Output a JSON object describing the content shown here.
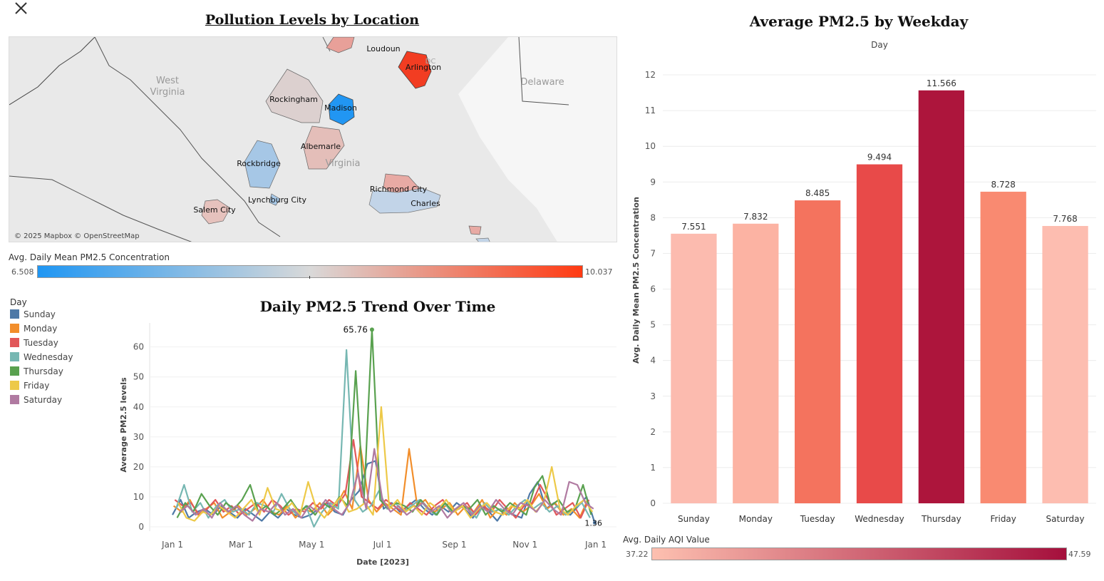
{
  "map": {
    "title": "Pollution Levels by Location",
    "attribution": "© 2025 Mapbox © OpenStreetMap",
    "state_labels": [
      "West",
      "Virginia",
      "Virginia",
      "Delaware",
      "DC"
    ],
    "locations": [
      {
        "name": "Loudoun",
        "value": null,
        "color": "#e8a099"
      },
      {
        "name": "Arlington",
        "value": 10.037,
        "color": "#f23d22"
      },
      {
        "name": "Rockingham",
        "value": null,
        "color": "#dcd0cf"
      },
      {
        "name": "Madison",
        "value": 6.508,
        "color": "#2196f3"
      },
      {
        "name": "Albemarle",
        "value": null,
        "color": "#e4beb9"
      },
      {
        "name": "Rockbridge",
        "value": null,
        "color": "#a6c7e6"
      },
      {
        "name": "Lynchburg City",
        "value": null,
        "color": "#a8c9e8"
      },
      {
        "name": "Salem City",
        "value": null,
        "color": "#e6c2bd"
      },
      {
        "name": "Richmond City",
        "value": null,
        "color": "#e8aaa4"
      },
      {
        "name": "Charles",
        "value": null,
        "color": "#c2d4e8"
      }
    ],
    "color_legend": {
      "title": "Avg. Daily Mean PM2.5 Concentration",
      "min": "6.508",
      "max": "10.037",
      "min_color": "#1f96f3",
      "mid_color": "#d9d9d9",
      "max_color": "#ff3a12"
    }
  },
  "line_chart": {
    "title": "Daily PM2.5 Trend Over Time",
    "legend_title": "Day",
    "ylabel": "Average PM2.5 levels",
    "xlabel": "Date [2023]",
    "peak_label": "65.76",
    "end_label": "1.36"
  },
  "bar_chart": {
    "title": "Average PM2.5 by Weekday",
    "top_label": "Day",
    "ylabel": "Avg. Daily Mean PM2.5 Concentration",
    "color_legend": {
      "title": "Avg. Daily AQI Value",
      "min": "37.22",
      "max": "47.59",
      "min_color": "#fdc0b0",
      "max_color": "#a50f3c"
    }
  },
  "chart_data": [
    {
      "type": "bar",
      "title": "Average PM2.5 by Weekday",
      "categories": [
        "Sunday",
        "Monday",
        "Tuesday",
        "Wednesday",
        "Thursday",
        "Friday",
        "Saturday"
      ],
      "values": [
        7.551,
        7.832,
        8.485,
        9.494,
        11.566,
        8.728,
        7.768
      ],
      "value_labels": [
        "7.551",
        "7.832",
        "8.485",
        "9.494",
        "11.566",
        "8.728",
        "7.768"
      ],
      "colors": [
        "#fcbbaf",
        "#fcb3a3",
        "#f4735e",
        "#e84a49",
        "#ad153c",
        "#f98a71",
        "#fdbdb0"
      ],
      "ylim": [
        0,
        12.5
      ],
      "yticks": [
        0,
        1,
        2,
        3,
        4,
        5,
        6,
        7,
        8,
        9,
        10,
        11,
        12
      ],
      "xlabel": "Day",
      "ylabel": "Avg. Daily Mean PM2.5 Concentration",
      "grid": true
    },
    {
      "type": "line",
      "title": "Daily PM2.5 Trend Over Time",
      "xlabel": "Date [2023]",
      "ylabel": "Average PM2.5 levels",
      "xlim": [
        "2023-01-01",
        "2024-01-01"
      ],
      "xticks": [
        "Jan 1",
        "Mar 1",
        "May 1",
        "Jul 1",
        "Sep 1",
        "Nov 1",
        "Jan 1"
      ],
      "ylim": [
        0,
        68
      ],
      "yticks": [
        0,
        10,
        20,
        30,
        40,
        50,
        60
      ],
      "grid": true,
      "legend_position": "left",
      "series": [
        {
          "name": "Sunday",
          "color": "#4e79a7",
          "x": [
            "2023-01-01",
            "2023-01-08",
            "2023-01-15",
            "2023-01-22",
            "2023-01-29",
            "2023-02-05",
            "2023-02-12",
            "2023-02-19",
            "2023-02-26",
            "2023-03-05",
            "2023-03-12",
            "2023-03-19",
            "2023-03-26",
            "2023-04-02",
            "2023-04-09",
            "2023-04-16",
            "2023-04-23",
            "2023-04-30",
            "2023-05-07",
            "2023-05-14",
            "2023-05-21",
            "2023-05-28",
            "2023-06-04",
            "2023-06-11",
            "2023-06-18",
            "2023-06-25",
            "2023-07-02",
            "2023-07-09",
            "2023-07-16",
            "2023-07-23",
            "2023-07-30",
            "2023-08-06",
            "2023-08-13",
            "2023-08-20",
            "2023-08-27",
            "2023-09-03",
            "2023-09-10",
            "2023-09-17",
            "2023-09-24",
            "2023-10-01",
            "2023-10-08",
            "2023-10-15",
            "2023-10-22",
            "2023-10-29",
            "2023-11-05",
            "2023-11-12",
            "2023-11-19",
            "2023-11-26",
            "2023-12-03",
            "2023-12-10",
            "2023-12-17",
            "2023-12-24",
            "2023-12-31"
          ],
          "values": [
            4,
            9,
            3,
            5,
            6,
            4,
            7,
            5,
            3,
            6,
            4,
            2,
            5,
            3,
            6,
            4,
            3,
            4,
            6,
            8,
            5,
            4,
            9,
            12,
            21,
            22,
            6,
            8,
            5,
            7,
            9,
            6,
            4,
            7,
            5,
            8,
            6,
            3,
            7,
            5,
            2,
            6,
            4,
            3,
            11,
            15,
            6,
            8,
            5,
            4,
            7,
            10,
            1.36
          ]
        },
        {
          "name": "Monday",
          "color": "#f28e2b",
          "x": [
            "2023-01-02",
            "2023-01-09",
            "2023-01-16",
            "2023-01-23",
            "2023-01-30",
            "2023-02-06",
            "2023-02-13",
            "2023-02-20",
            "2023-02-27",
            "2023-03-06",
            "2023-03-13",
            "2023-03-20",
            "2023-03-27",
            "2023-04-03",
            "2023-04-10",
            "2023-04-17",
            "2023-04-24",
            "2023-05-01",
            "2023-05-08",
            "2023-05-15",
            "2023-05-22",
            "2023-05-29",
            "2023-06-05",
            "2023-06-12",
            "2023-06-19",
            "2023-06-26",
            "2023-07-03",
            "2023-07-10",
            "2023-07-17",
            "2023-07-24",
            "2023-07-31",
            "2023-08-07",
            "2023-08-14",
            "2023-08-21",
            "2023-08-28",
            "2023-09-04",
            "2023-09-11",
            "2023-09-18",
            "2023-09-25",
            "2023-10-02",
            "2023-10-09",
            "2023-10-16",
            "2023-10-23",
            "2023-10-30",
            "2023-11-06",
            "2023-11-13",
            "2023-11-20",
            "2023-11-27",
            "2023-12-04",
            "2023-12-11",
            "2023-12-18",
            "2023-12-25"
          ],
          "values": [
            7,
            5,
            9,
            4,
            6,
            8,
            3,
            5,
            7,
            4,
            6,
            9,
            5,
            4,
            7,
            3,
            6,
            5,
            8,
            4,
            7,
            12,
            6,
            27,
            9,
            5,
            8,
            6,
            4,
            26,
            7,
            9,
            5,
            6,
            8,
            4,
            7,
            5,
            9,
            3,
            6,
            4,
            8,
            5,
            7,
            11,
            6,
            8,
            4,
            6,
            3,
            9
          ]
        },
        {
          "name": "Tuesday",
          "color": "#e15759",
          "x": [
            "2023-01-03",
            "2023-01-10",
            "2023-01-17",
            "2023-01-24",
            "2023-01-31",
            "2023-02-07",
            "2023-02-14",
            "2023-02-21",
            "2023-02-28",
            "2023-03-07",
            "2023-03-14",
            "2023-03-21",
            "2023-03-28",
            "2023-04-04",
            "2023-04-11",
            "2023-04-18",
            "2023-04-25",
            "2023-05-02",
            "2023-05-09",
            "2023-05-16",
            "2023-05-23",
            "2023-05-30",
            "2023-06-06",
            "2023-06-13",
            "2023-06-20",
            "2023-06-27",
            "2023-07-04",
            "2023-07-11",
            "2023-07-18",
            "2023-07-25",
            "2023-08-01",
            "2023-08-08",
            "2023-08-15",
            "2023-08-22",
            "2023-08-29",
            "2023-09-05",
            "2023-09-12",
            "2023-09-19",
            "2023-09-26",
            "2023-10-03",
            "2023-10-10",
            "2023-10-17",
            "2023-10-24",
            "2023-10-31",
            "2023-11-07",
            "2023-11-14",
            "2023-11-21",
            "2023-11-28",
            "2023-12-05",
            "2023-12-12",
            "2023-12-19",
            "2023-12-26"
          ],
          "values": [
            9,
            7,
            8,
            4,
            6,
            9,
            5,
            7,
            4,
            6,
            8,
            5,
            9,
            7,
            4,
            6,
            5,
            8,
            6,
            9,
            7,
            11,
            29,
            10,
            8,
            6,
            9,
            7,
            5,
            8,
            6,
            4,
            7,
            9,
            5,
            6,
            8,
            4,
            7,
            5,
            9,
            6,
            3,
            7,
            8,
            14,
            9,
            4,
            6,
            8,
            3,
            9
          ]
        },
        {
          "name": "Wednesday",
          "color": "#76b7b2",
          "x": [
            "2023-01-04",
            "2023-01-11",
            "2023-01-18",
            "2023-01-25",
            "2023-02-01",
            "2023-02-08",
            "2023-02-15",
            "2023-02-22",
            "2023-03-01",
            "2023-03-08",
            "2023-03-15",
            "2023-03-22",
            "2023-03-29",
            "2023-04-05",
            "2023-04-12",
            "2023-04-19",
            "2023-04-26",
            "2023-05-03",
            "2023-05-10",
            "2023-05-17",
            "2023-05-24",
            "2023-05-31",
            "2023-06-07",
            "2023-06-14",
            "2023-06-21",
            "2023-06-28",
            "2023-07-05",
            "2023-07-12",
            "2023-07-19",
            "2023-07-26",
            "2023-08-02",
            "2023-08-09",
            "2023-08-16",
            "2023-08-23",
            "2023-08-30",
            "2023-09-06",
            "2023-09-13",
            "2023-09-20",
            "2023-09-27",
            "2023-10-04",
            "2023-10-11",
            "2023-10-18",
            "2023-10-25",
            "2023-11-01",
            "2023-11-08",
            "2023-11-15",
            "2023-11-22",
            "2023-11-29",
            "2023-12-06",
            "2023-12-13",
            "2023-12-20",
            "2023-12-27"
          ],
          "values": [
            6,
            14,
            5,
            8,
            3,
            7,
            9,
            5,
            6,
            4,
            8,
            7,
            5,
            11,
            6,
            4,
            7,
            0,
            5,
            8,
            6,
            59,
            9,
            5,
            7,
            12,
            6,
            8,
            5,
            7,
            9,
            6,
            4,
            8,
            5,
            7,
            6,
            3,
            8,
            5,
            6,
            4,
            7,
            9,
            6,
            8,
            5,
            7,
            4,
            6,
            8,
            3
          ]
        },
        {
          "name": "Thursday",
          "color": "#59a14f",
          "x": [
            "2023-01-05",
            "2023-01-12",
            "2023-01-19",
            "2023-01-26",
            "2023-02-02",
            "2023-02-09",
            "2023-02-16",
            "2023-02-23",
            "2023-03-02",
            "2023-03-09",
            "2023-03-16",
            "2023-03-23",
            "2023-03-30",
            "2023-04-06",
            "2023-04-13",
            "2023-04-20",
            "2023-04-27",
            "2023-05-04",
            "2023-05-11",
            "2023-05-18",
            "2023-05-25",
            "2023-06-01",
            "2023-06-08",
            "2023-06-15",
            "2023-06-22",
            "2023-06-29",
            "2023-07-06",
            "2023-07-13",
            "2023-07-20",
            "2023-07-27",
            "2023-08-03",
            "2023-08-10",
            "2023-08-17",
            "2023-08-24",
            "2023-08-31",
            "2023-09-07",
            "2023-09-14",
            "2023-09-21",
            "2023-09-28",
            "2023-10-05",
            "2023-10-12",
            "2023-10-19",
            "2023-10-26",
            "2023-11-02",
            "2023-11-09",
            "2023-11-16",
            "2023-11-23",
            "2023-11-30",
            "2023-12-07",
            "2023-12-14",
            "2023-12-21",
            "2023-12-28"
          ],
          "values": [
            3,
            8,
            5,
            11,
            7,
            4,
            8,
            6,
            9,
            14,
            5,
            7,
            4,
            6,
            9,
            5,
            7,
            4,
            8,
            6,
            10,
            7,
            52,
            8,
            65.76,
            9,
            6,
            8,
            7,
            5,
            9,
            6,
            4,
            8,
            5,
            7,
            6,
            9,
            4,
            7,
            5,
            8,
            6,
            4,
            13,
            17,
            7,
            9,
            5,
            6,
            14,
            4
          ]
        },
        {
          "name": "Friday",
          "color": "#edc948",
          "x": [
            "2023-01-06",
            "2023-01-13",
            "2023-01-20",
            "2023-01-27",
            "2023-02-03",
            "2023-02-10",
            "2023-02-17",
            "2023-02-24",
            "2023-03-03",
            "2023-03-10",
            "2023-03-17",
            "2023-03-24",
            "2023-03-31",
            "2023-04-07",
            "2023-04-14",
            "2023-04-21",
            "2023-04-28",
            "2023-05-05",
            "2023-05-12",
            "2023-05-19",
            "2023-05-26",
            "2023-06-02",
            "2023-06-09",
            "2023-06-16",
            "2023-06-23",
            "2023-06-30",
            "2023-07-07",
            "2023-07-14",
            "2023-07-21",
            "2023-07-28",
            "2023-08-04",
            "2023-08-11",
            "2023-08-18",
            "2023-08-25",
            "2023-09-01",
            "2023-09-08",
            "2023-09-15",
            "2023-09-22",
            "2023-09-29",
            "2023-10-06",
            "2023-10-13",
            "2023-10-20",
            "2023-10-27",
            "2023-11-03",
            "2023-11-10",
            "2023-11-17",
            "2023-11-24",
            "2023-12-01",
            "2023-12-08",
            "2023-12-15",
            "2023-12-22",
            "2023-12-29"
          ],
          "values": [
            8,
            3,
            2,
            5,
            4,
            7,
            5,
            3,
            6,
            9,
            4,
            13,
            6,
            5,
            8,
            4,
            15,
            6,
            3,
            7,
            10,
            5,
            6,
            8,
            4,
            40,
            6,
            9,
            5,
            7,
            4,
            8,
            6,
            9,
            5,
            7,
            3,
            6,
            8,
            5,
            4,
            7,
            6,
            9,
            5,
            8,
            20,
            6,
            4,
            7,
            9,
            5
          ]
        },
        {
          "name": "Saturday",
          "color": "#b07aa1",
          "x": [
            "2023-01-07",
            "2023-01-14",
            "2023-01-21",
            "2023-01-28",
            "2023-02-04",
            "2023-02-11",
            "2023-02-18",
            "2023-02-25",
            "2023-03-04",
            "2023-03-11",
            "2023-03-18",
            "2023-03-25",
            "2023-04-01",
            "2023-04-08",
            "2023-04-15",
            "2023-04-22",
            "2023-04-29",
            "2023-05-06",
            "2023-05-13",
            "2023-05-20",
            "2023-05-27",
            "2023-06-03",
            "2023-06-10",
            "2023-06-17",
            "2023-06-24",
            "2023-07-01",
            "2023-07-08",
            "2023-07-15",
            "2023-07-22",
            "2023-07-29",
            "2023-08-05",
            "2023-08-12",
            "2023-08-19",
            "2023-08-26",
            "2023-09-02",
            "2023-09-09",
            "2023-09-16",
            "2023-09-23",
            "2023-09-30",
            "2023-10-07",
            "2023-10-14",
            "2023-10-21",
            "2023-10-28",
            "2023-11-04",
            "2023-11-11",
            "2023-11-18",
            "2023-11-25",
            "2023-12-02",
            "2023-12-09",
            "2023-12-16",
            "2023-12-23",
            "2023-12-30"
          ],
          "values": [
            5,
            7,
            4,
            6,
            3,
            8,
            5,
            7,
            4,
            2,
            6,
            5,
            8,
            4,
            6,
            3,
            7,
            5,
            9,
            6,
            4,
            8,
            18,
            6,
            26,
            9,
            5,
            7,
            4,
            6,
            8,
            5,
            7,
            3,
            6,
            8,
            4,
            7,
            5,
            9,
            6,
            4,
            8,
            7,
            5,
            9,
            6,
            4,
            15,
            14,
            8,
            6
          ]
        }
      ]
    }
  ]
}
